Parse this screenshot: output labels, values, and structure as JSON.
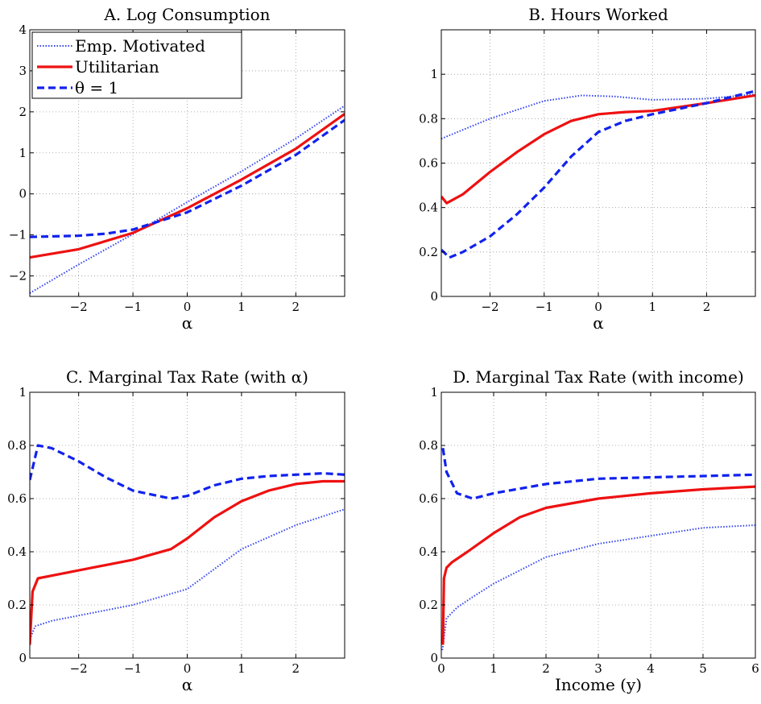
{
  "colors": {
    "emp": "#3344ee",
    "util": "#ee1111",
    "theta": "#1122ee"
  },
  "legend": {
    "emp": "Emp. Motivated",
    "util": "Utilitarian",
    "theta": "θ = 1"
  },
  "chart_data": [
    {
      "type": "line",
      "title": "A. Log Consumption",
      "xlabel": "α",
      "ylabel": "",
      "xlim": [
        -2.9,
        2.9
      ],
      "ylim": [
        -2.5,
        4
      ],
      "xticks": [
        -2,
        -1,
        0,
        1,
        2
      ],
      "xtick_labels": [
        "−2",
        "−1",
        "0",
        "1",
        "2"
      ],
      "yticks": [
        -2,
        -1,
        0,
        1,
        2,
        3,
        4
      ],
      "ytick_labels": [
        "−2",
        "−1",
        "0",
        "1",
        "2",
        "3",
        "4"
      ],
      "legend_position": "top-left",
      "series": [
        {
          "name": "Emp. Motivated",
          "style": "dotted",
          "x": [
            -2.9,
            -2,
            -1,
            0,
            1,
            2,
            2.9
          ],
          "y": [
            -2.42,
            -1.72,
            -0.98,
            -0.2,
            0.55,
            1.35,
            2.15
          ]
        },
        {
          "name": "Utilitarian",
          "style": "solid",
          "x": [
            -2.9,
            -2,
            -1,
            0,
            1,
            2,
            2.9
          ],
          "y": [
            -1.55,
            -1.35,
            -0.95,
            -0.35,
            0.35,
            1.1,
            1.95
          ]
        },
        {
          "name": "θ = 1",
          "style": "dashed",
          "x": [
            -2.9,
            -2,
            -1.5,
            -1,
            0,
            1,
            2,
            2.9
          ],
          "y": [
            -1.05,
            -1.02,
            -0.97,
            -0.87,
            -0.45,
            0.2,
            0.95,
            1.8
          ]
        }
      ]
    },
    {
      "type": "line",
      "title": "B. Hours Worked",
      "xlabel": "α",
      "ylabel": "",
      "xlim": [
        -2.9,
        2.9
      ],
      "ylim": [
        0,
        1.2
      ],
      "xticks": [
        -2,
        -1,
        0,
        1,
        2
      ],
      "xtick_labels": [
        "−2",
        "−1",
        "0",
        "1",
        "2"
      ],
      "yticks": [
        0,
        0.2,
        0.4,
        0.6,
        0.8,
        1
      ],
      "ytick_labels": [
        "0",
        "0.2",
        "0.4",
        "0.6",
        "0.8",
        "1"
      ],
      "series": [
        {
          "name": "Emp. Motivated",
          "style": "dotted",
          "x": [
            -2.9,
            -2,
            -1,
            -0.3,
            0.3,
            1,
            2,
            2.9
          ],
          "y": [
            0.71,
            0.8,
            0.88,
            0.905,
            0.9,
            0.885,
            0.89,
            0.91
          ]
        },
        {
          "name": "Utilitarian",
          "style": "solid",
          "x": [
            -2.9,
            -2.8,
            -2.5,
            -2,
            -1.5,
            -1,
            -0.5,
            0,
            0.5,
            1,
            2,
            2.9
          ],
          "y": [
            0.45,
            0.42,
            0.46,
            0.56,
            0.65,
            0.73,
            0.79,
            0.82,
            0.83,
            0.835,
            0.87,
            0.905
          ]
        },
        {
          "name": "θ = 1",
          "style": "dashed",
          "x": [
            -2.9,
            -2.75,
            -2.5,
            -2,
            -1.5,
            -1,
            -0.5,
            0,
            0.5,
            1,
            2,
            2.9
          ],
          "y": [
            0.21,
            0.175,
            0.2,
            0.27,
            0.37,
            0.49,
            0.63,
            0.74,
            0.79,
            0.82,
            0.87,
            0.925
          ]
        }
      ]
    },
    {
      "type": "line",
      "title": "C. Marginal Tax Rate (with α)",
      "xlabel": "α",
      "ylabel": "",
      "xlim": [
        -2.9,
        2.9
      ],
      "ylim": [
        0,
        1
      ],
      "xticks": [
        -2,
        -1,
        0,
        1,
        2
      ],
      "xtick_labels": [
        "−2",
        "−1",
        "0",
        "1",
        "2"
      ],
      "yticks": [
        0,
        0.2,
        0.4,
        0.6,
        0.8,
        1
      ],
      "ytick_labels": [
        "0",
        "0.2",
        "0.4",
        "0.6",
        "0.8",
        "1"
      ],
      "series": [
        {
          "name": "Emp. Motivated",
          "style": "dotted",
          "x": [
            -2.9,
            -2.8,
            -2.5,
            -2,
            -1,
            0,
            1,
            2,
            2.9
          ],
          "y": [
            0.07,
            0.12,
            0.14,
            0.16,
            0.2,
            0.26,
            0.41,
            0.5,
            0.56
          ]
        },
        {
          "name": "Utilitarian",
          "style": "solid",
          "x": [
            -2.9,
            -2.85,
            -2.75,
            -2.5,
            -2,
            -1,
            -0.3,
            0,
            0.5,
            1,
            1.5,
            2,
            2.5,
            2.9
          ],
          "y": [
            0.05,
            0.25,
            0.3,
            0.31,
            0.33,
            0.37,
            0.41,
            0.45,
            0.53,
            0.59,
            0.63,
            0.655,
            0.665,
            0.665
          ]
        },
        {
          "name": "θ = 1",
          "style": "dashed",
          "x": [
            -2.9,
            -2.75,
            -2.5,
            -2,
            -1.5,
            -1,
            -0.3,
            0,
            0.5,
            1,
            1.5,
            2,
            2.5,
            2.9
          ],
          "y": [
            0.67,
            0.8,
            0.79,
            0.74,
            0.68,
            0.63,
            0.6,
            0.61,
            0.65,
            0.675,
            0.685,
            0.69,
            0.695,
            0.69
          ]
        }
      ]
    },
    {
      "type": "line",
      "title": "D. Marginal Tax Rate (with income)",
      "xlabel": "Income (y)",
      "ylabel": "",
      "xlim": [
        0,
        6
      ],
      "ylim": [
        0,
        1
      ],
      "xticks": [
        0,
        1,
        2,
        3,
        4,
        5,
        6
      ],
      "xtick_labels": [
        "0",
        "1",
        "2",
        "3",
        "4",
        "5",
        "6"
      ],
      "yticks": [
        0,
        0.2,
        0.4,
        0.6,
        0.8,
        1
      ],
      "ytick_labels": [
        "0",
        "0.2",
        "0.4",
        "0.6",
        "0.8",
        "1"
      ],
      "series": [
        {
          "name": "Emp. Motivated",
          "style": "dotted",
          "x": [
            0.02,
            0.1,
            0.3,
            0.6,
            1,
            1.5,
            2,
            3,
            4,
            5,
            6
          ],
          "y": [
            0.03,
            0.15,
            0.19,
            0.23,
            0.28,
            0.33,
            0.38,
            0.43,
            0.46,
            0.49,
            0.5
          ]
        },
        {
          "name": "Utilitarian",
          "style": "solid",
          "x": [
            0.03,
            0.05,
            0.1,
            0.2,
            0.5,
            1,
            1.5,
            2,
            3,
            4,
            5,
            6
          ],
          "y": [
            0.05,
            0.3,
            0.34,
            0.36,
            0.4,
            0.47,
            0.53,
            0.565,
            0.6,
            0.62,
            0.635,
            0.645
          ]
        },
        {
          "name": "θ = 1",
          "style": "dashed",
          "x": [
            0.03,
            0.1,
            0.3,
            0.6,
            1,
            2,
            3,
            4,
            5,
            6
          ],
          "y": [
            0.79,
            0.7,
            0.62,
            0.6,
            0.62,
            0.655,
            0.675,
            0.68,
            0.685,
            0.69
          ]
        }
      ]
    }
  ]
}
